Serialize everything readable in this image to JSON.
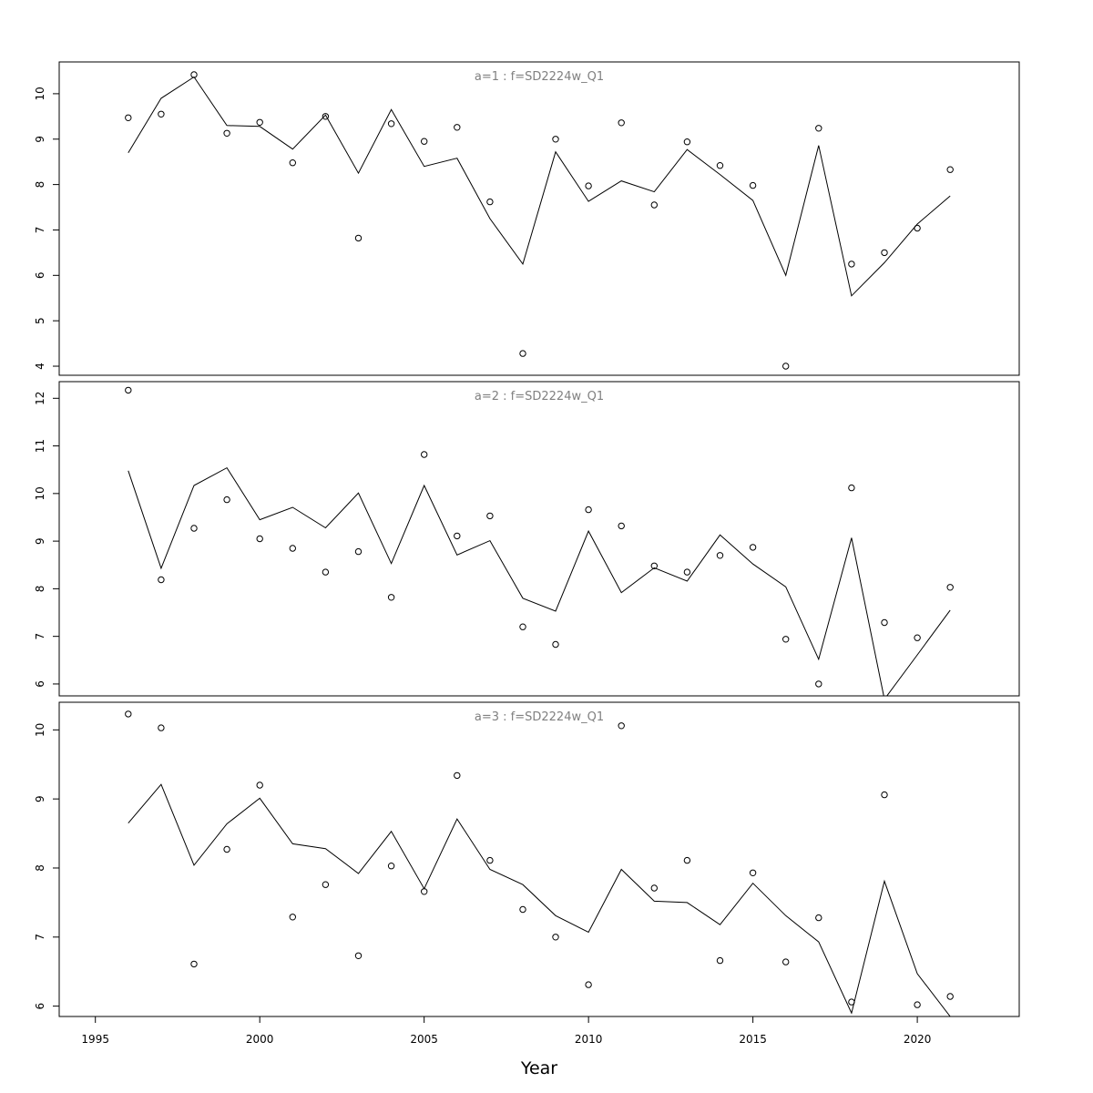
{
  "chart_data": {
    "type": "line",
    "xlabel": "Year",
    "xlim": [
      1993.9,
      2023.1
    ],
    "xticks": [
      1995,
      2000,
      2005,
      2010,
      2015,
      2020
    ],
    "x": [
      1996,
      1997,
      1998,
      1999,
      2000,
      2001,
      2002,
      2003,
      2004,
      2005,
      2006,
      2007,
      2008,
      2009,
      2010,
      2011,
      2012,
      2013,
      2014,
      2015,
      2016,
      2017,
      2018,
      2019,
      2020,
      2021
    ],
    "colors": {
      "line": "#000000",
      "points": "#000000",
      "title": "#808080",
      "frame": "#000000"
    },
    "panels": [
      {
        "title": "a=1 : f=SD2224w_Q1",
        "ylim": [
          3.8,
          10.7
        ],
        "yticks": [
          4,
          5,
          6,
          7,
          8,
          9,
          10
        ],
        "observed": [
          9.47,
          9.55,
          10.42,
          9.13,
          9.37,
          8.48,
          9.5,
          6.82,
          9.34,
          8.95,
          9.26,
          7.62,
          4.28,
          9.0,
          7.97,
          9.36,
          7.55,
          8.94,
          8.42,
          7.98,
          4.0,
          9.24,
          6.25,
          6.5,
          7.04,
          8.33
        ],
        "fitted": [
          8.7,
          9.9,
          10.37,
          9.3,
          9.28,
          8.78,
          9.53,
          8.25,
          9.65,
          8.4,
          8.58,
          7.25,
          6.25,
          8.72,
          7.63,
          8.08,
          7.84,
          8.77,
          8.22,
          7.65,
          6.0,
          8.86,
          5.55,
          6.28,
          7.13,
          7.75
        ]
      },
      {
        "title": "a=2 : f=SD2224w_Q1",
        "ylim": [
          5.75,
          12.35
        ],
        "yticks": [
          6,
          7,
          8,
          9,
          10,
          11,
          12
        ],
        "observed": [
          12.17,
          8.19,
          9.27,
          9.87,
          9.05,
          8.85,
          8.35,
          8.78,
          7.82,
          10.82,
          9.11,
          9.53,
          7.2,
          6.83,
          9.66,
          9.32,
          8.48,
          8.35,
          8.7,
          8.87,
          6.94,
          6.0,
          10.12,
          7.29,
          6.97,
          8.03
        ],
        "fitted": [
          10.48,
          8.43,
          10.17,
          10.54,
          9.45,
          9.71,
          9.28,
          10.01,
          8.53,
          10.17,
          8.71,
          9.01,
          7.8,
          7.53,
          9.21,
          7.92,
          8.44,
          8.16,
          9.13,
          8.52,
          8.04,
          6.52,
          9.07,
          5.68,
          6.61,
          7.55
        ]
      },
      {
        "title": "a=3 : f=SD2224w_Q1",
        "ylim": [
          5.85,
          10.4
        ],
        "yticks": [
          6,
          7,
          8,
          9,
          10
        ],
        "observed": [
          10.23,
          10.03,
          6.61,
          8.27,
          9.2,
          7.29,
          7.76,
          6.73,
          8.03,
          7.66,
          9.34,
          8.11,
          7.4,
          7.0,
          6.31,
          10.06,
          7.71,
          8.11,
          6.66,
          7.93,
          6.64,
          7.28,
          6.06,
          9.06,
          6.02,
          6.14
        ],
        "fitted": [
          8.65,
          9.21,
          8.04,
          8.64,
          9.01,
          8.35,
          8.28,
          7.92,
          8.53,
          7.7,
          8.71,
          7.98,
          7.76,
          7.31,
          7.07,
          7.98,
          7.52,
          7.5,
          7.18,
          7.78,
          7.31,
          6.93,
          5.9,
          7.81,
          6.47,
          5.85
        ]
      }
    ]
  }
}
